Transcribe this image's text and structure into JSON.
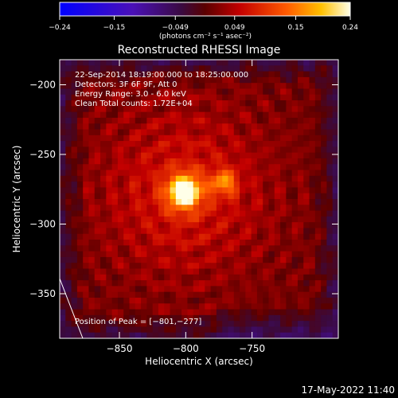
{
  "chart_data": {
    "type": "heatmap",
    "title": "Reconstructed RHESSI Image",
    "xlabel": "Heliocentric X (arcsec)",
    "ylabel": "Heliocentric Y (arcsec)",
    "xlim": [
      -895,
      -685
    ],
    "ylim": [
      -382,
      -182
    ],
    "x_ticks": [
      -850,
      -800,
      -750
    ],
    "y_ticks": [
      -200,
      -250,
      -300,
      -350
    ],
    "x_tick_labels": [
      "−850",
      "−800",
      "−750"
    ],
    "y_tick_labels": [
      "−200",
      "−250",
      "−300",
      "−350"
    ],
    "colorbar": {
      "range": [
        -0.24,
        0.24
      ],
      "ticks": [
        -0.24,
        -0.15,
        -0.049,
        0.049,
        0.15,
        0.24
      ],
      "tick_labels": [
        "−0.24",
        "−0.15",
        "−0.049",
        "0.049",
        "0.15",
        "0.24"
      ],
      "unit_label": "(photons cm⁻² s⁻¹ asec⁻²)"
    },
    "peak": {
      "x": -801,
      "y": -277
    },
    "info_lines": [
      "22-Sep-2014 18:19:00.000 to 18:25:00.000",
      "Detectors: 3F 6F 9F, Att 0",
      "Energy Range: 3.0 - 6.0 keV",
      "Clean    Total counts: 1.72E+04"
    ],
    "peak_label": "Position of Peak = [−801,−277]",
    "timestamp": "17-May-2022 11:40"
  }
}
